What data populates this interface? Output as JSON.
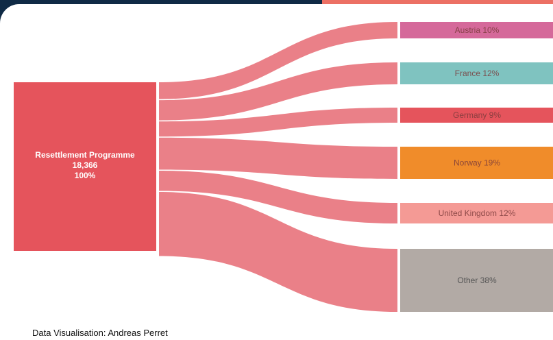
{
  "chart_data": {
    "type": "sankey",
    "source": {
      "label": "Resettlement Programme",
      "value": "18,366",
      "percent": "100%",
      "color": "#e5545c"
    },
    "targets": [
      {
        "label": "Austria 10%",
        "percent": 10,
        "color": "#d5699a"
      },
      {
        "label": "France 12%",
        "percent": 12,
        "color": "#7fc3c0"
      },
      {
        "label": "Germany 9%",
        "percent": 9,
        "color": "#e5545c"
      },
      {
        "label": "Norway 19%",
        "percent": 19,
        "color": "#f08c2a"
      },
      {
        "label": "United Kingdom 12%",
        "percent": 12,
        "color": "#f49a95"
      },
      {
        "label": "Other 38%",
        "percent": 38,
        "color": "#b2aaa5"
      }
    ],
    "link_color": "#e8727b"
  },
  "credit": "Data Visualisation: Andreas Perret"
}
